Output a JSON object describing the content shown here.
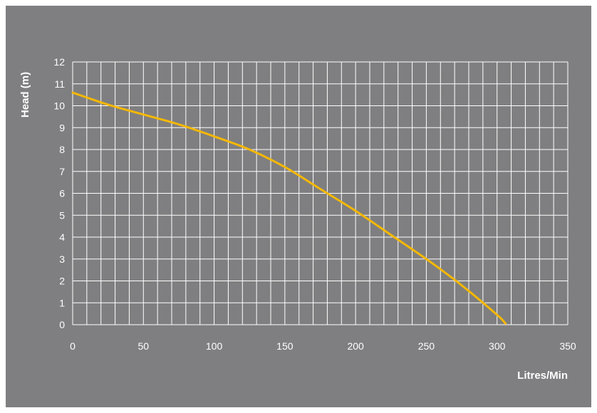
{
  "chart_data": {
    "type": "line",
    "title": "",
    "xlabel": "Litres/Min",
    "ylabel": "Head (m)",
    "xlim": [
      0,
      350
    ],
    "ylim": [
      0,
      12
    ],
    "x_ticks": [
      "0",
      "50",
      "100",
      "150",
      "200",
      "250",
      "300",
      "350"
    ],
    "y_ticks": [
      "0",
      "1",
      "2",
      "3",
      "4",
      "5",
      "6",
      "7",
      "8",
      "9",
      "10",
      "11",
      "12"
    ],
    "grid": true,
    "legend": "none",
    "series": [
      {
        "color": "#f5b800",
        "x": [
          0,
          25,
          50,
          75,
          100,
          125,
          150,
          175,
          200,
          225,
          250,
          275,
          300,
          306
        ],
        "y": [
          10.6,
          10.05,
          9.6,
          9.15,
          8.6,
          8.0,
          7.2,
          6.2,
          5.2,
          4.1,
          3.0,
          1.8,
          0.45,
          0.05
        ]
      }
    ],
    "background_color": "#7f7f81",
    "grid_color": "#ffffff"
  }
}
